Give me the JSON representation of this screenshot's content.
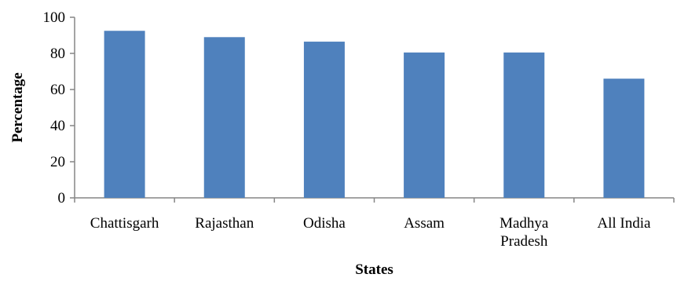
{
  "chart_data": {
    "type": "bar",
    "categories": [
      [
        "Chattisgarh"
      ],
      [
        "Rajasthan"
      ],
      [
        "Odisha"
      ],
      [
        "Assam"
      ],
      [
        "Madhya",
        "Pradesh"
      ],
      [
        "All India"
      ]
    ],
    "values": [
      92.5,
      89,
      86.5,
      80.5,
      80.5,
      66
    ],
    "title": "",
    "xlabel": "States",
    "ylabel": "Percentage",
    "ylim": [
      0,
      100
    ],
    "yticks": [
      0,
      20,
      40,
      60,
      80,
      100
    ],
    "grid": false,
    "legend": "none",
    "colors": {
      "bar": "#4f81bd",
      "axis": "#868686"
    }
  }
}
